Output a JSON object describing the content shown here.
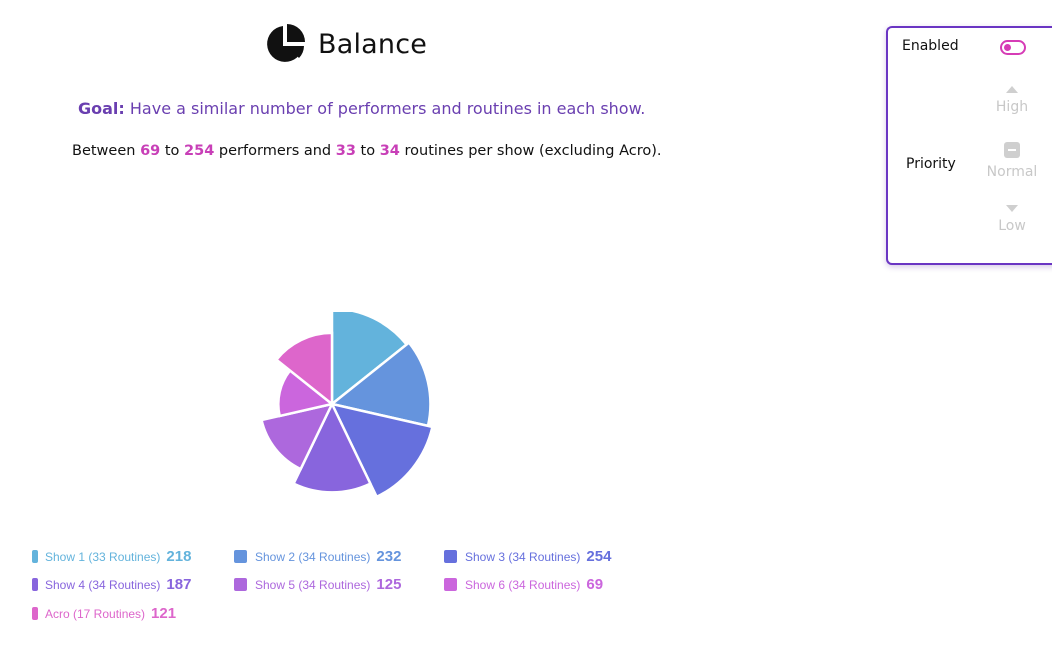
{
  "header": {
    "title": "Balance",
    "logo_icon": "pie-chart-icon"
  },
  "goal": {
    "label": "Goal:",
    "text": " Have a similar number of performers and routines in each show."
  },
  "summary": {
    "prefix": "Between ",
    "perf_min": "69",
    "to1": " to ",
    "perf_max": "254",
    "mid": " performers and ",
    "rout_min": "33",
    "to2": " to ",
    "rout_max": "34",
    "suffix": " routines per show (excluding Acro)."
  },
  "panel": {
    "enabled_label": "Enabled",
    "enabled": true,
    "priority_label": "Priority",
    "priority_options": {
      "high": "High",
      "normal": "Normal",
      "low": "Low"
    },
    "toggle_color": "#d63cb6",
    "border_color": "#6a35c3"
  },
  "legend": [
    {
      "label": "Show 1 (33 Routines)",
      "value": "218",
      "color": "#63b3dc"
    },
    {
      "label": "Show 2 (34 Routines)",
      "value": "232",
      "color": "#6594dd"
    },
    {
      "label": "Show 3 (34 Routines)",
      "value": "254",
      "color": "#6670dd"
    },
    {
      "label": "Show 4 (34 Routines)",
      "value": "187",
      "color": "#8865dd"
    },
    {
      "label": "Show 5 (34 Routines)",
      "value": "125",
      "color": "#ad68dd"
    },
    {
      "label": "Show 6 (34 Routines)",
      "value": "69",
      "color": "#cb66dd"
    },
    {
      "label": "Acro (17 Routines)",
      "value": "121",
      "color": "#dd66cb"
    }
  ],
  "chart_data": {
    "type": "pie",
    "variant": "polar-area",
    "note_radius": "radius encodes performers",
    "categories": [
      "Show 1",
      "Show 2",
      "Show 3",
      "Show 4",
      "Show 5",
      "Show 6",
      "Acro"
    ],
    "values": [
      218,
      232,
      254,
      187,
      125,
      69,
      121
    ],
    "routines": [
      33,
      34,
      34,
      34,
      34,
      34,
      17
    ],
    "colors": [
      "#63b3dc",
      "#6594dd",
      "#6670dd",
      "#8865dd",
      "#ad68dd",
      "#cb66dd",
      "#dd66cb"
    ]
  }
}
